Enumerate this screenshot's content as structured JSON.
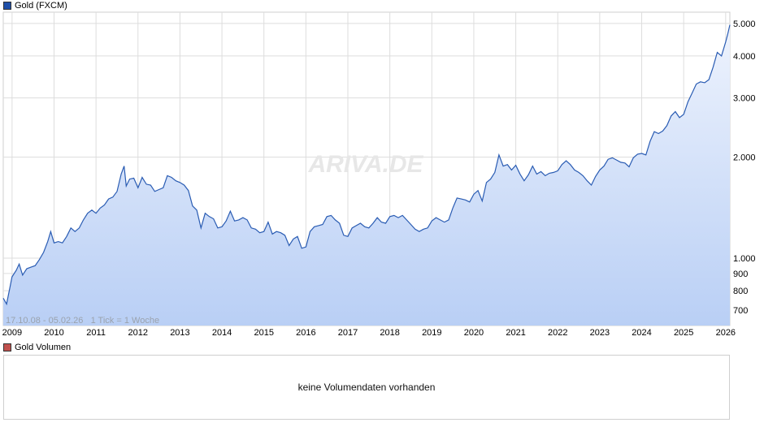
{
  "price_legend": {
    "label": "Gold (FXCM)",
    "color": "#1f4fa8"
  },
  "volume_legend": {
    "label": "Gold Volumen",
    "color": "#c0504d"
  },
  "volume_panel": {
    "message": "keine Volumendaten vorhanden"
  },
  "range_info": "17.10.08 - 05.02.26   1 Tick = 1 Woche",
  "watermark": "ARIVA.DE",
  "colors": {
    "line": "#2a5cb3",
    "fill_top": "#eef3fd",
    "fill_bottom": "#b9cff5",
    "grid": "#dddddd"
  },
  "chart_data": {
    "type": "area",
    "yscale": "log",
    "ylim": [
      630,
      5400
    ],
    "xlim": [
      2008.79,
      2026.1
    ],
    "x_ticks": [
      "2009",
      "2010",
      "2011",
      "2012",
      "2013",
      "2014",
      "2015",
      "2016",
      "2017",
      "2018",
      "2019",
      "2020",
      "2021",
      "2022",
      "2023",
      "2024",
      "2025",
      "2026"
    ],
    "y_ticks": [
      {
        "value": 700,
        "label": "700"
      },
      {
        "value": 800,
        "label": "800"
      },
      {
        "value": 900,
        "label": "900"
      },
      {
        "value": 1000,
        "label": "1.000"
      },
      {
        "value": 2000,
        "label": "2.000"
      },
      {
        "value": 3000,
        "label": "3.000"
      },
      {
        "value": 4000,
        "label": "4.000"
      },
      {
        "value": 5000,
        "label": "5.000"
      }
    ],
    "series": [
      {
        "points": [
          [
            2008.79,
            760
          ],
          [
            2008.87,
            730
          ],
          [
            2008.95,
            820
          ],
          [
            2009.0,
            880
          ],
          [
            2009.1,
            920
          ],
          [
            2009.17,
            960
          ],
          [
            2009.25,
            890
          ],
          [
            2009.35,
            930
          ],
          [
            2009.45,
            940
          ],
          [
            2009.55,
            950
          ],
          [
            2009.65,
            990
          ],
          [
            2009.75,
            1040
          ],
          [
            2009.85,
            1120
          ],
          [
            2009.92,
            1200
          ],
          [
            2010.0,
            1110
          ],
          [
            2010.1,
            1120
          ],
          [
            2010.2,
            1110
          ],
          [
            2010.3,
            1160
          ],
          [
            2010.4,
            1230
          ],
          [
            2010.5,
            1200
          ],
          [
            2010.6,
            1230
          ],
          [
            2010.7,
            1300
          ],
          [
            2010.8,
            1360
          ],
          [
            2010.9,
            1390
          ],
          [
            2011.0,
            1360
          ],
          [
            2011.1,
            1410
          ],
          [
            2011.2,
            1440
          ],
          [
            2011.3,
            1500
          ],
          [
            2011.4,
            1520
          ],
          [
            2011.5,
            1580
          ],
          [
            2011.6,
            1780
          ],
          [
            2011.67,
            1880
          ],
          [
            2011.72,
            1640
          ],
          [
            2011.8,
            1720
          ],
          [
            2011.9,
            1730
          ],
          [
            2012.0,
            1620
          ],
          [
            2012.1,
            1740
          ],
          [
            2012.2,
            1660
          ],
          [
            2012.3,
            1650
          ],
          [
            2012.4,
            1580
          ],
          [
            2012.5,
            1600
          ],
          [
            2012.6,
            1620
          ],
          [
            2012.7,
            1760
          ],
          [
            2012.8,
            1740
          ],
          [
            2012.9,
            1700
          ],
          [
            2013.0,
            1680
          ],
          [
            2013.1,
            1650
          ],
          [
            2013.2,
            1590
          ],
          [
            2013.3,
            1430
          ],
          [
            2013.4,
            1390
          ],
          [
            2013.5,
            1230
          ],
          [
            2013.6,
            1360
          ],
          [
            2013.7,
            1330
          ],
          [
            2013.8,
            1310
          ],
          [
            2013.9,
            1230
          ],
          [
            2014.0,
            1240
          ],
          [
            2014.1,
            1290
          ],
          [
            2014.2,
            1380
          ],
          [
            2014.3,
            1290
          ],
          [
            2014.4,
            1300
          ],
          [
            2014.5,
            1320
          ],
          [
            2014.6,
            1300
          ],
          [
            2014.7,
            1230
          ],
          [
            2014.8,
            1220
          ],
          [
            2014.9,
            1190
          ],
          [
            2015.0,
            1200
          ],
          [
            2015.1,
            1280
          ],
          [
            2015.2,
            1180
          ],
          [
            2015.3,
            1200
          ],
          [
            2015.4,
            1190
          ],
          [
            2015.5,
            1170
          ],
          [
            2015.6,
            1090
          ],
          [
            2015.7,
            1140
          ],
          [
            2015.8,
            1160
          ],
          [
            2015.9,
            1070
          ],
          [
            2016.0,
            1080
          ],
          [
            2016.1,
            1200
          ],
          [
            2016.2,
            1240
          ],
          [
            2016.3,
            1250
          ],
          [
            2016.4,
            1260
          ],
          [
            2016.5,
            1330
          ],
          [
            2016.6,
            1340
          ],
          [
            2016.7,
            1300
          ],
          [
            2016.8,
            1270
          ],
          [
            2016.9,
            1170
          ],
          [
            2017.0,
            1160
          ],
          [
            2017.1,
            1230
          ],
          [
            2017.2,
            1250
          ],
          [
            2017.3,
            1270
          ],
          [
            2017.4,
            1240
          ],
          [
            2017.5,
            1230
          ],
          [
            2017.6,
            1270
          ],
          [
            2017.7,
            1320
          ],
          [
            2017.8,
            1280
          ],
          [
            2017.9,
            1270
          ],
          [
            2018.0,
            1330
          ],
          [
            2018.1,
            1340
          ],
          [
            2018.2,
            1320
          ],
          [
            2018.3,
            1340
          ],
          [
            2018.4,
            1300
          ],
          [
            2018.5,
            1260
          ],
          [
            2018.6,
            1220
          ],
          [
            2018.7,
            1200
          ],
          [
            2018.8,
            1220
          ],
          [
            2018.9,
            1230
          ],
          [
            2019.0,
            1290
          ],
          [
            2019.1,
            1320
          ],
          [
            2019.2,
            1300
          ],
          [
            2019.3,
            1280
          ],
          [
            2019.4,
            1300
          ],
          [
            2019.5,
            1410
          ],
          [
            2019.6,
            1510
          ],
          [
            2019.7,
            1500
          ],
          [
            2019.8,
            1490
          ],
          [
            2019.9,
            1470
          ],
          [
            2020.0,
            1550
          ],
          [
            2020.1,
            1590
          ],
          [
            2020.2,
            1480
          ],
          [
            2020.3,
            1680
          ],
          [
            2020.4,
            1720
          ],
          [
            2020.5,
            1800
          ],
          [
            2020.6,
            2030
          ],
          [
            2020.7,
            1880
          ],
          [
            2020.8,
            1900
          ],
          [
            2020.9,
            1830
          ],
          [
            2021.0,
            1890
          ],
          [
            2021.1,
            1780
          ],
          [
            2021.2,
            1700
          ],
          [
            2021.3,
            1770
          ],
          [
            2021.4,
            1880
          ],
          [
            2021.5,
            1780
          ],
          [
            2021.6,
            1810
          ],
          [
            2021.7,
            1760
          ],
          [
            2021.8,
            1790
          ],
          [
            2021.9,
            1800
          ],
          [
            2022.0,
            1820
          ],
          [
            2022.1,
            1900
          ],
          [
            2022.2,
            1950
          ],
          [
            2022.3,
            1900
          ],
          [
            2022.4,
            1830
          ],
          [
            2022.5,
            1800
          ],
          [
            2022.6,
            1760
          ],
          [
            2022.7,
            1700
          ],
          [
            2022.8,
            1650
          ],
          [
            2022.9,
            1750
          ],
          [
            2023.0,
            1830
          ],
          [
            2023.1,
            1880
          ],
          [
            2023.2,
            1970
          ],
          [
            2023.3,
            1990
          ],
          [
            2023.4,
            1960
          ],
          [
            2023.5,
            1930
          ],
          [
            2023.6,
            1920
          ],
          [
            2023.7,
            1870
          ],
          [
            2023.8,
            1990
          ],
          [
            2023.9,
            2040
          ],
          [
            2024.0,
            2050
          ],
          [
            2024.1,
            2030
          ],
          [
            2024.2,
            2230
          ],
          [
            2024.3,
            2380
          ],
          [
            2024.4,
            2350
          ],
          [
            2024.5,
            2390
          ],
          [
            2024.6,
            2480
          ],
          [
            2024.7,
            2650
          ],
          [
            2024.8,
            2730
          ],
          [
            2024.9,
            2620
          ],
          [
            2025.0,
            2680
          ],
          [
            2025.1,
            2920
          ],
          [
            2025.2,
            3100
          ],
          [
            2025.3,
            3300
          ],
          [
            2025.4,
            3350
          ],
          [
            2025.5,
            3330
          ],
          [
            2025.6,
            3400
          ],
          [
            2025.7,
            3700
          ],
          [
            2025.8,
            4100
          ],
          [
            2025.9,
            4000
          ],
          [
            2025.95,
            4200
          ],
          [
            2026.0,
            4400
          ],
          [
            2026.05,
            4650
          ],
          [
            2026.1,
            4950
          ]
        ]
      }
    ]
  }
}
